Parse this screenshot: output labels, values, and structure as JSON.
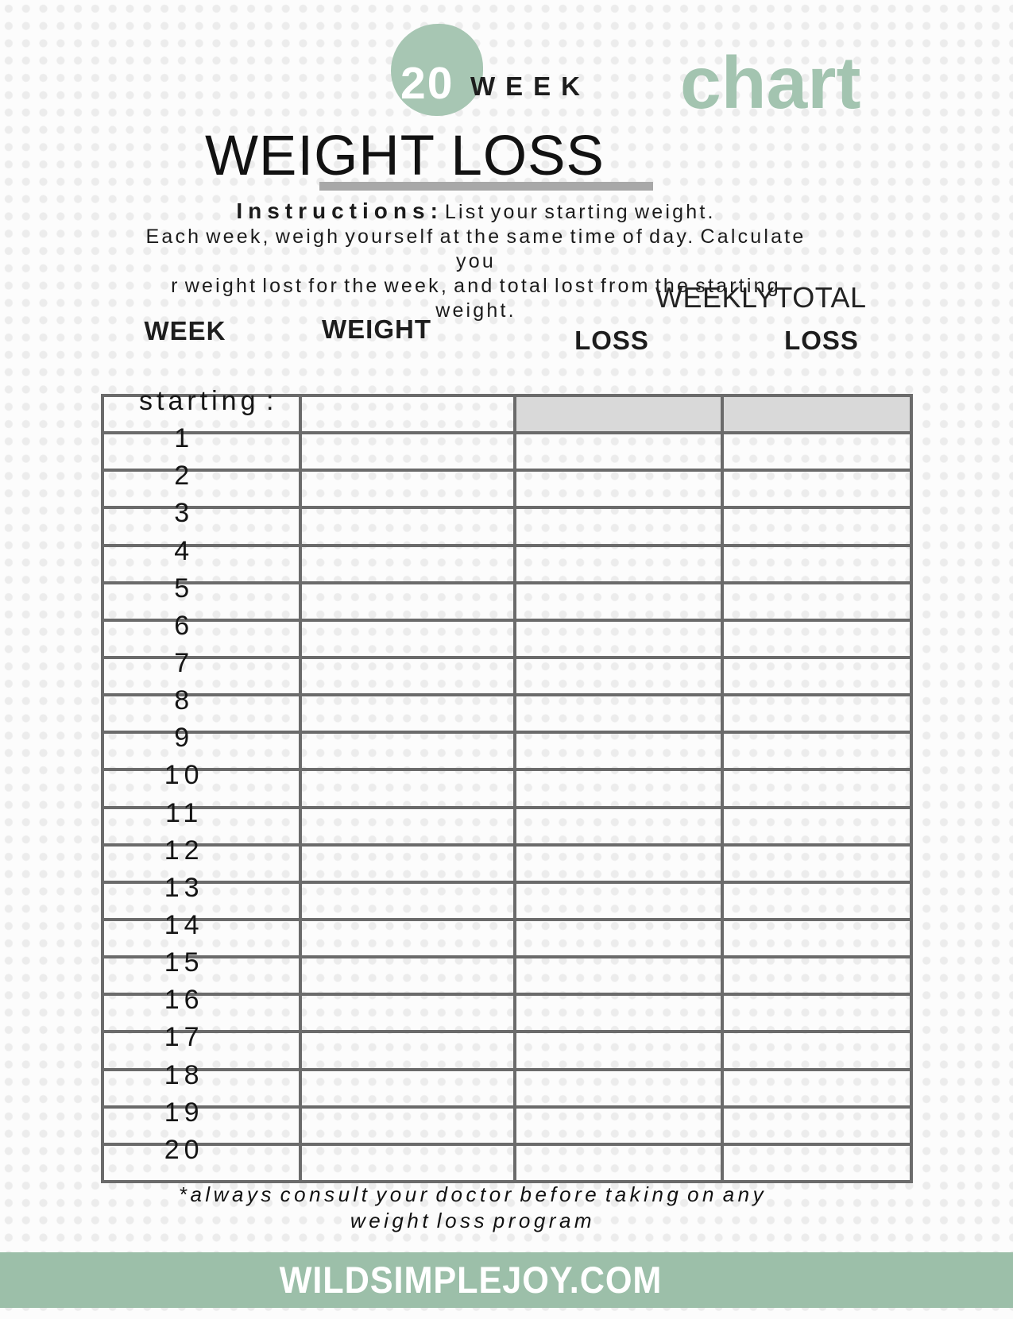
{
  "colors": {
    "accent_green": "#a5c4b1",
    "badge_green": "#a7c6b3",
    "footer_bar_green": "#9cbfa9",
    "table_border_gray": "#6b6b6b",
    "shaded_cell_gray": "#d9d9d9",
    "underline_gray": "#a8a8a8",
    "dot_pattern_gray": "#ececec"
  },
  "header": {
    "badge_number": "20",
    "badge_label": "WEEK",
    "script_word": "chart",
    "title": "WEIGHT LOSS"
  },
  "instructions": {
    "label": "Instructions:",
    "line1": "List your starting weight.",
    "line2": "Each week, weigh yourself at the same time of day. Calculate you",
    "line3": "r weight lost for the week, and total lost from the starting weight."
  },
  "table": {
    "group_headers": {
      "weekly": "WEEKLY",
      "total": "TOTAL"
    },
    "columns": [
      "WEEK",
      "WEIGHT",
      "LOSS",
      "LOSS"
    ],
    "rows": [
      {
        "label": "starting :",
        "shaded": true
      },
      {
        "label": "1"
      },
      {
        "label": "2"
      },
      {
        "label": "3"
      },
      {
        "label": "4"
      },
      {
        "label": "5"
      },
      {
        "label": "6"
      },
      {
        "label": "7"
      },
      {
        "label": "8"
      },
      {
        "label": "9"
      },
      {
        "label": "10"
      },
      {
        "label": "11"
      },
      {
        "label": "12"
      },
      {
        "label": "13"
      },
      {
        "label": "14"
      },
      {
        "label": "15"
      },
      {
        "label": "16"
      },
      {
        "label": "17"
      },
      {
        "label": "18"
      },
      {
        "label": "19"
      },
      {
        "label": "20"
      }
    ]
  },
  "footnote": {
    "line1": "*always consult your doctor before taking on any",
    "line2": "weight loss program"
  },
  "footer": {
    "site": "WILDSIMPLEJOY.COM"
  }
}
